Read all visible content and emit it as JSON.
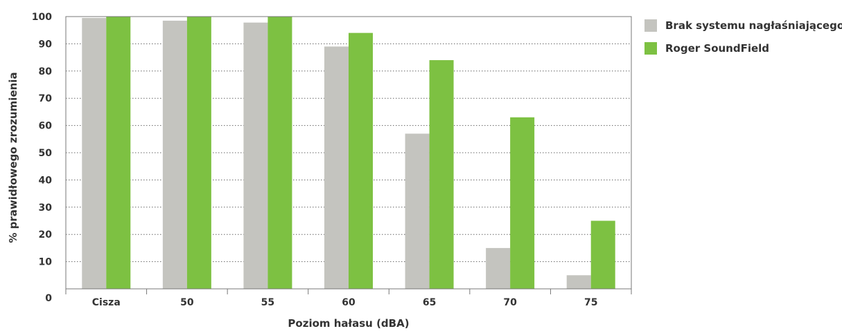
{
  "chart_data": {
    "type": "bar",
    "xlabel": "Poziom hałasu (dBA)",
    "ylabel": "% prawidłowego zrozumienia",
    "categories": [
      "Cisza",
      "50",
      "55",
      "60",
      "65",
      "70",
      "75"
    ],
    "ylim": [
      0,
      100
    ],
    "yticks": [
      "0",
      "10",
      "20",
      "30",
      "40",
      "50",
      "60",
      "70",
      "80",
      "90",
      "100"
    ],
    "grid": "horizontal dotted",
    "legend_position": "right",
    "series": [
      {
        "name": "Brak systemu nagłaśniającego",
        "color": "#c4c4bf",
        "values": [
          99.5,
          98.5,
          97.8,
          89,
          57,
          15,
          5
        ]
      },
      {
        "name": "Roger SoundField",
        "color": "#7dc142",
        "values": [
          100,
          100,
          100,
          94,
          84,
          63,
          25
        ]
      }
    ]
  }
}
